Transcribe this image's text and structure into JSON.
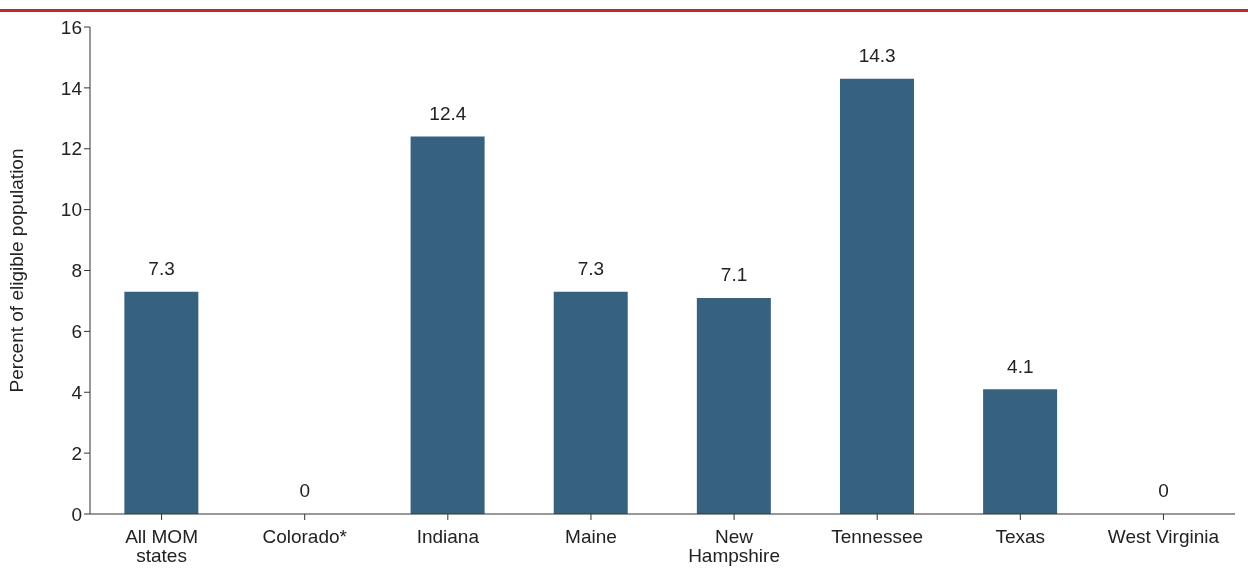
{
  "chart_data": {
    "type": "bar",
    "ylabel": "Percent of eligible population",
    "categories": [
      "All MOM states",
      "Colorado*",
      "Indiana",
      "Maine",
      "New Hampshire",
      "Tennessee",
      "Texas",
      "West Virginia"
    ],
    "values": [
      7.3,
      0,
      12.4,
      7.3,
      7.1,
      14.3,
      4.1,
      0
    ],
    "color": "#36627f",
    "ylim": [
      0,
      16
    ],
    "yticks": [
      0,
      2,
      4,
      6,
      8,
      10,
      12,
      14,
      16
    ],
    "grid": false,
    "data_labels": true
  }
}
